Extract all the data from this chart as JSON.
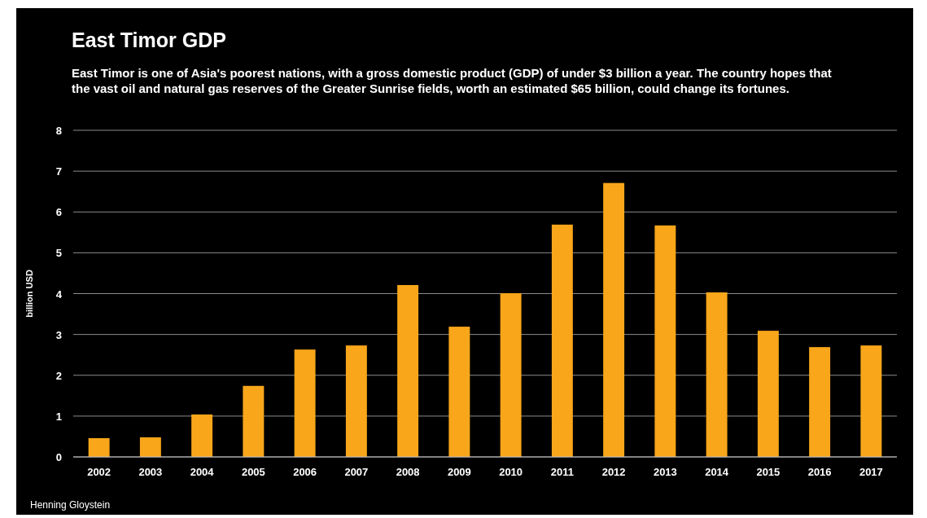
{
  "chart_data": {
    "type": "bar",
    "title": "East Timor GDP",
    "subtitle": "East Timor is one of Asia's poorest nations, with a gross domestic product (GDP) of under $3 billion a year.  The country hopes that the vast oil and natural gas reserves of the Greater Sunrise fields, worth an estimated $65 billion, could change its fortunes.",
    "ylabel": "billion USD",
    "annotations": [
      "Henning Gloystein"
    ],
    "categories": [
      "2002",
      "2003",
      "2004",
      "2005",
      "2006",
      "2007",
      "2008",
      "2009",
      "2010",
      "2011",
      "2012",
      "2013",
      "2014",
      "2015",
      "2016",
      "2017"
    ],
    "values": [
      0.46,
      0.48,
      1.04,
      1.74,
      2.63,
      2.73,
      4.21,
      3.19,
      4.01,
      5.69,
      6.71,
      5.67,
      4.03,
      3.09,
      2.69,
      2.73
    ],
    "color": "#f9a61a",
    "ylim": [
      0,
      8
    ],
    "yticks": [
      0,
      1,
      2,
      3,
      4,
      5,
      6,
      7,
      8
    ],
    "grid": true
  }
}
